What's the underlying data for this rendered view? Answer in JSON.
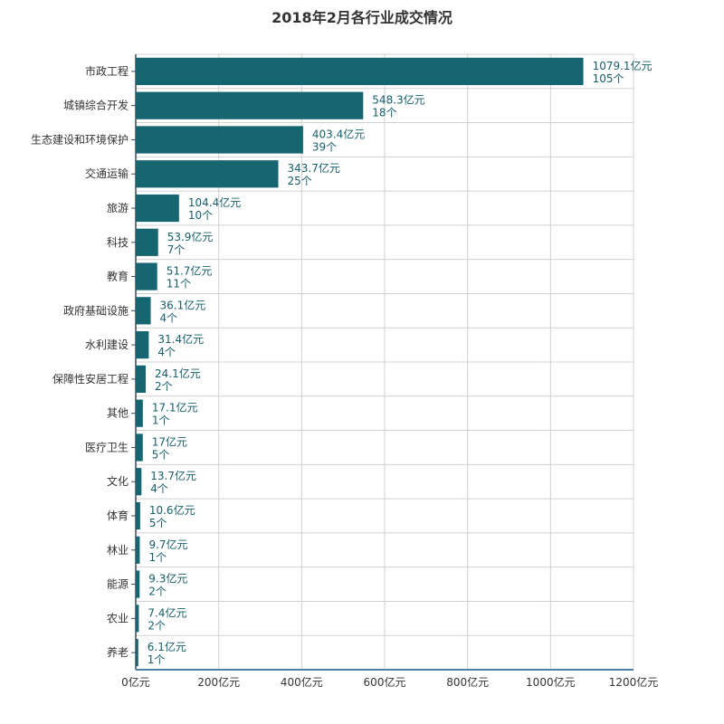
{
  "chart_data": {
    "type": "bar",
    "orientation": "horizontal",
    "title": "2018年2月各行业成交情况",
    "categories": [
      "市政工程",
      "城镇综合开发",
      "生态建设和环境保护",
      "交通运输",
      "旅游",
      "科技",
      "教育",
      "政府基础设施",
      "水利建设",
      "保障性安居工程",
      "其他",
      "医疗卫生",
      "文化",
      "体育",
      "林业",
      "能源",
      "农业",
      "养老"
    ],
    "series": [
      {
        "values": [
          1079.1,
          548.3,
          403.4,
          343.7,
          104.4,
          53.9,
          51.7,
          36.1,
          31.4,
          24.1,
          17.1,
          17,
          13.7,
          10.6,
          9.7,
          9.3,
          7.4,
          6.1
        ]
      }
    ],
    "value_labels": [
      "1079.1亿元",
      "548.3亿元",
      "403.4亿元",
      "343.7亿元",
      "104.4亿元",
      "53.9亿元",
      "51.7亿元",
      "36.1亿元",
      "31.4亿元",
      "24.1亿元",
      "17.1亿元",
      "17亿元",
      "13.7亿元",
      "10.6亿元",
      "9.7亿元",
      "9.3亿元",
      "7.4亿元",
      "6.1亿元"
    ],
    "count_labels": [
      "105个",
      "18个",
      "39个",
      "25个",
      "10个",
      "7个",
      "11个",
      "4个",
      "4个",
      "2个",
      "1个",
      "5个",
      "4个",
      "5个",
      "1个",
      "2个",
      "2个",
      "1个"
    ],
    "xlim": [
      0,
      1200
    ],
    "xticks": [
      0,
      200,
      400,
      600,
      800,
      1000,
      1200
    ],
    "xtick_labels": [
      "0亿元",
      "200亿元",
      "400亿元",
      "600亿元",
      "800亿元",
      "1000亿元",
      "1200亿元"
    ],
    "xlabel": "",
    "ylabel": "",
    "grid": true,
    "bar_color": "#166672",
    "label_color": "#175e6a"
  }
}
